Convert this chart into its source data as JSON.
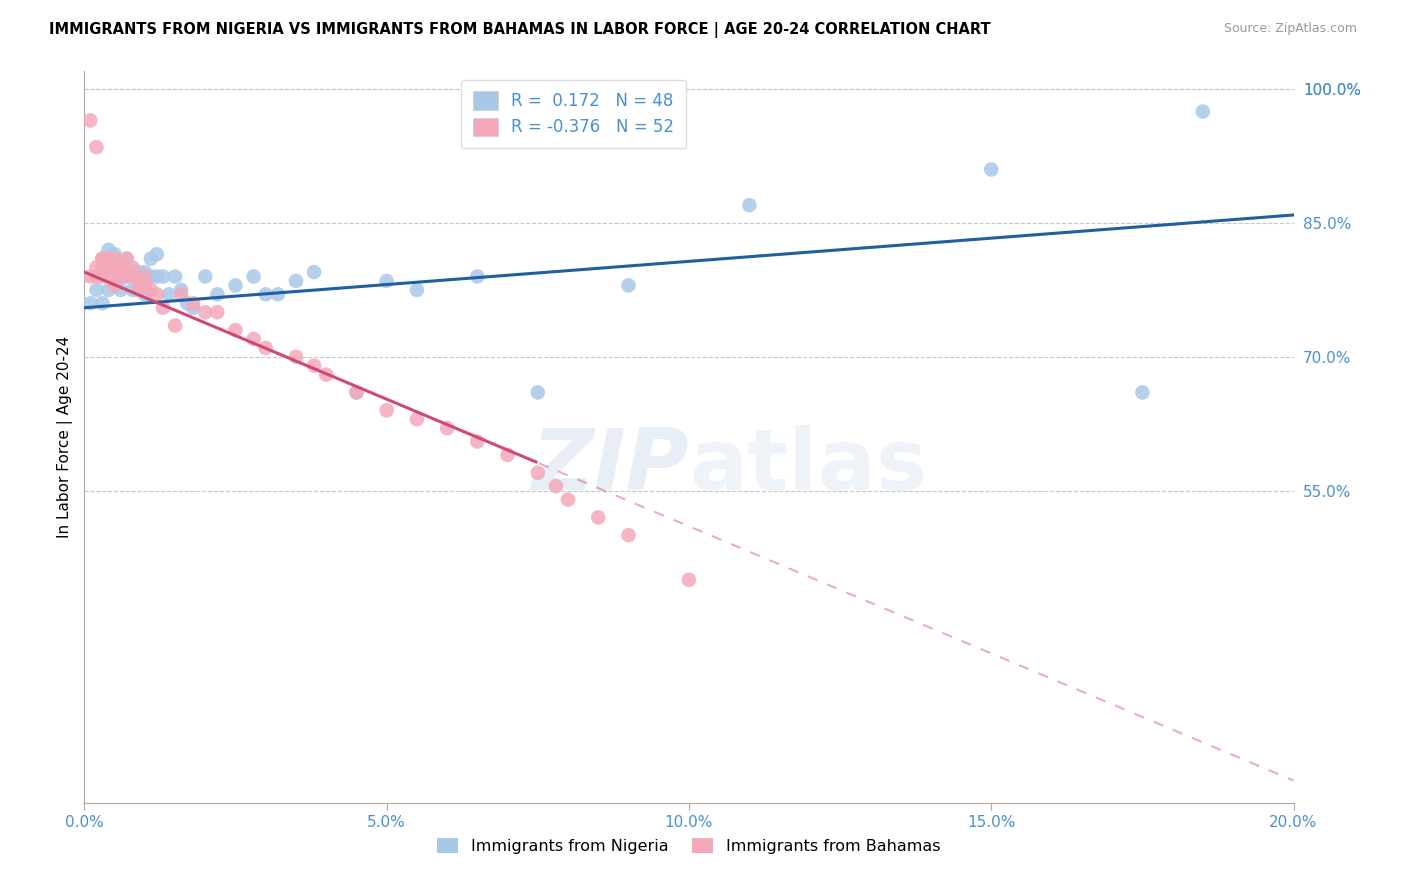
{
  "title": "IMMIGRANTS FROM NIGERIA VS IMMIGRANTS FROM BAHAMAS IN LABOR FORCE | AGE 20-24 CORRELATION CHART",
  "source": "Source: ZipAtlas.com",
  "ylabel": "In Labor Force | Age 20-24",
  "xlim": [
    0.0,
    0.2
  ],
  "ylim": [
    0.2,
    1.02
  ],
  "yticks": [
    0.55,
    0.7,
    0.85,
    1.0
  ],
  "xticks": [
    0.0,
    0.05,
    0.1,
    0.15,
    0.2
  ],
  "nigeria_R": 0.172,
  "nigeria_N": 48,
  "bahamas_R": -0.376,
  "bahamas_N": 52,
  "nigeria_color": "#a8c8e8",
  "bahamas_color": "#f4a8b8",
  "nigeria_line_color": "#2060a0",
  "bahamas_line_color": "#d04878",
  "axis_tick_color": "#4a90d0",
  "grid_color": "#c8c8c8",
  "nigeria_line_intercept": 0.755,
  "nigeria_line_slope": 0.52,
  "bahamas_line_intercept": 0.795,
  "bahamas_line_slope": -2.85,
  "bahamas_solid_cutoff": 0.075,
  "nigeria_x": [
    0.001,
    0.002,
    0.003,
    0.003,
    0.003,
    0.004,
    0.004,
    0.005,
    0.005,
    0.005,
    0.006,
    0.006,
    0.007,
    0.007,
    0.008,
    0.008,
    0.009,
    0.009,
    0.01,
    0.01,
    0.011,
    0.011,
    0.012,
    0.012,
    0.013,
    0.014,
    0.015,
    0.016,
    0.017,
    0.018,
    0.02,
    0.022,
    0.025,
    0.028,
    0.03,
    0.032,
    0.035,
    0.038,
    0.045,
    0.05,
    0.055,
    0.065,
    0.075,
    0.09,
    0.11,
    0.15,
    0.175,
    0.185
  ],
  "nigeria_y": [
    0.76,
    0.775,
    0.81,
    0.76,
    0.8,
    0.775,
    0.82,
    0.78,
    0.8,
    0.815,
    0.775,
    0.79,
    0.81,
    0.79,
    0.775,
    0.795,
    0.775,
    0.795,
    0.77,
    0.795,
    0.79,
    0.81,
    0.79,
    0.815,
    0.79,
    0.77,
    0.79,
    0.775,
    0.76,
    0.755,
    0.79,
    0.77,
    0.78,
    0.79,
    0.77,
    0.77,
    0.785,
    0.795,
    0.66,
    0.785,
    0.775,
    0.79,
    0.66,
    0.78,
    0.87,
    0.91,
    0.66,
    0.975
  ],
  "bahamas_x": [
    0.001,
    0.001,
    0.002,
    0.002,
    0.002,
    0.003,
    0.003,
    0.003,
    0.003,
    0.004,
    0.004,
    0.004,
    0.005,
    0.005,
    0.005,
    0.006,
    0.006,
    0.006,
    0.007,
    0.007,
    0.008,
    0.008,
    0.009,
    0.009,
    0.01,
    0.01,
    0.011,
    0.012,
    0.013,
    0.015,
    0.016,
    0.018,
    0.02,
    0.022,
    0.025,
    0.028,
    0.03,
    0.035,
    0.038,
    0.04,
    0.045,
    0.05,
    0.055,
    0.06,
    0.065,
    0.07,
    0.075,
    0.078,
    0.08,
    0.085,
    0.09,
    0.1
  ],
  "bahamas_y": [
    0.79,
    0.965,
    0.79,
    0.8,
    0.935,
    0.8,
    0.81,
    0.79,
    0.81,
    0.8,
    0.79,
    0.81,
    0.8,
    0.81,
    0.78,
    0.8,
    0.79,
    0.8,
    0.79,
    0.81,
    0.79,
    0.8,
    0.775,
    0.785,
    0.78,
    0.79,
    0.775,
    0.77,
    0.755,
    0.735,
    0.77,
    0.76,
    0.75,
    0.75,
    0.73,
    0.72,
    0.71,
    0.7,
    0.69,
    0.68,
    0.66,
    0.64,
    0.63,
    0.62,
    0.605,
    0.59,
    0.57,
    0.555,
    0.54,
    0.52,
    0.5,
    0.45
  ]
}
